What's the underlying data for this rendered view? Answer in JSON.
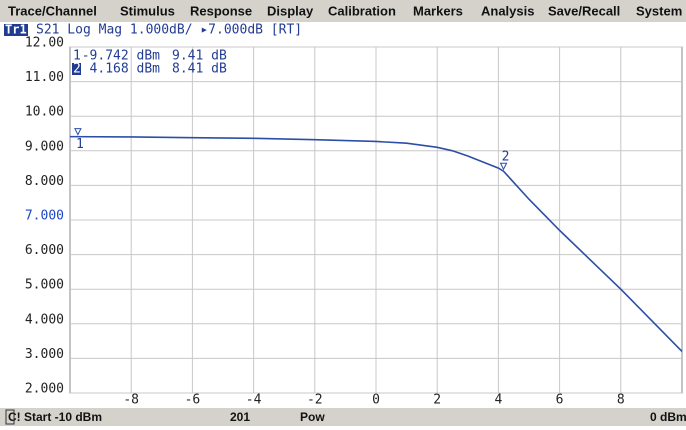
{
  "menu": [
    "Trace/Channel",
    "Stimulus",
    "Response",
    "Display",
    "Calibration",
    "Markers",
    "Analysis",
    "Save/Recall",
    "System"
  ],
  "trace_header": {
    "trace": "Tr1",
    "format": "S21 Log Mag 1.000dB/ ▸7.000dB [RT]"
  },
  "chart_data": {
    "type": "line",
    "color": "#2d4ea6",
    "grid": true,
    "x": [
      -10,
      -8,
      -6,
      -4,
      -2,
      0,
      1,
      2,
      2.5,
      3,
      4,
      4.168,
      5,
      6,
      7,
      8,
      9,
      10
    ],
    "values": [
      9.41,
      9.4,
      9.38,
      9.36,
      9.32,
      9.27,
      9.22,
      9.1,
      9.0,
      8.85,
      8.5,
      8.41,
      7.6,
      6.7,
      5.85,
      5.0,
      4.1,
      3.2
    ],
    "xlim": [
      -10,
      10
    ],
    "xticks": [
      -8,
      -6,
      -4,
      -2,
      0,
      2,
      4,
      6,
      8
    ],
    "ylim": [
      2,
      12
    ],
    "yticks": [
      {
        "value": 12,
        "label": "12.00"
      },
      {
        "value": 11,
        "label": "11.00"
      },
      {
        "value": 10,
        "label": "10.00"
      },
      {
        "value": 9,
        "label": "9.000"
      },
      {
        "value": 8,
        "label": "8.000"
      },
      {
        "value": 7,
        "label": "7.000"
      },
      {
        "value": 6,
        "label": "6.000"
      },
      {
        "value": 5,
        "label": "5.000"
      },
      {
        "value": 4,
        "label": "4.000"
      },
      {
        "value": 3,
        "label": "3.000"
      },
      {
        "value": 2,
        "label": "2.000"
      }
    ],
    "markers": {
      "names": [
        "1",
        "2"
      ],
      "x": [
        -9.742,
        4.168
      ],
      "values": [
        9.41,
        8.41
      ],
      "x_labels": [
        "-9.742 dBm",
        "4.168 dBm"
      ],
      "value_labels": [
        "9.41 dB",
        "8.41 dB"
      ]
    }
  },
  "status_bar": [
    "C! Start -10 dBm",
    "201",
    "Pow",
    "0 dBm"
  ]
}
